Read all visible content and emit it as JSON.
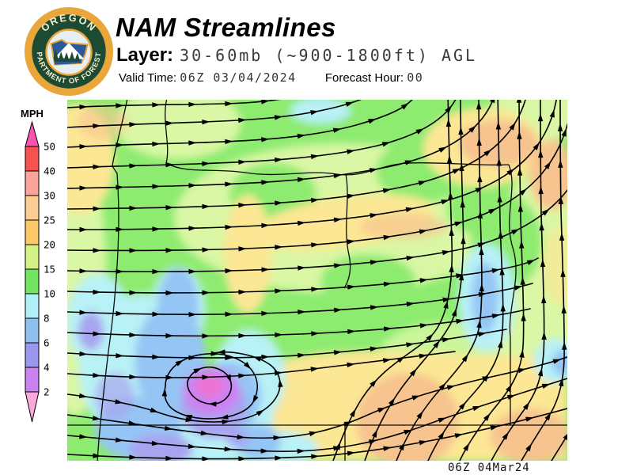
{
  "header": {
    "title": "NAM Streamlines",
    "layer_label": "Layer:",
    "layer_value": "30-60mb (~900-1800ft) AGL",
    "valid_time_label": "Valid Time:",
    "valid_time_value": "06Z 03/04/2024",
    "forecast_hour_label": "Forecast Hour:",
    "forecast_hour_value": "00"
  },
  "logo": {
    "arc_top": "OREGON",
    "arc_bottom": "DEPARTMENT OF FORESTRY",
    "colors": {
      "ring": "#E9A63B",
      "field": "#1D4A33",
      "text": "#F6EECF",
      "scene_sky": "#2A5A9C",
      "scene_trees": "#1D4A33",
      "mountain": "#FFFFFF"
    }
  },
  "legend": {
    "title": "MPH",
    "ticks": [
      "50",
      "40",
      "30",
      "25",
      "20",
      "15",
      "10",
      "8",
      "6",
      "4",
      "2"
    ],
    "colors_top_to_bottom": [
      "#F8524E",
      "#FBA29A",
      "#FBCD92",
      "#FBCA66",
      "#D4F284",
      "#72E45F",
      "#AFF0F8",
      "#8FBFF0",
      "#9A97EE",
      "#CB82F0"
    ],
    "above_max_color": "#F955B0",
    "below_min_color": "#F9AADB"
  },
  "map": {
    "timestamp": "06Z 04Mar24",
    "streamline_color": "#000000",
    "fill_colors": {
      "green": "#8DEB70",
      "pale_green": "#D9F7A4",
      "yellow": "#FBE794",
      "orange": "#F7C48F",
      "cyan": "#B8F1F6",
      "blue": "#95C5F4",
      "lavender": "#A8A4F0",
      "purple": "#CC82F1",
      "magenta": "#EF72D2"
    }
  }
}
